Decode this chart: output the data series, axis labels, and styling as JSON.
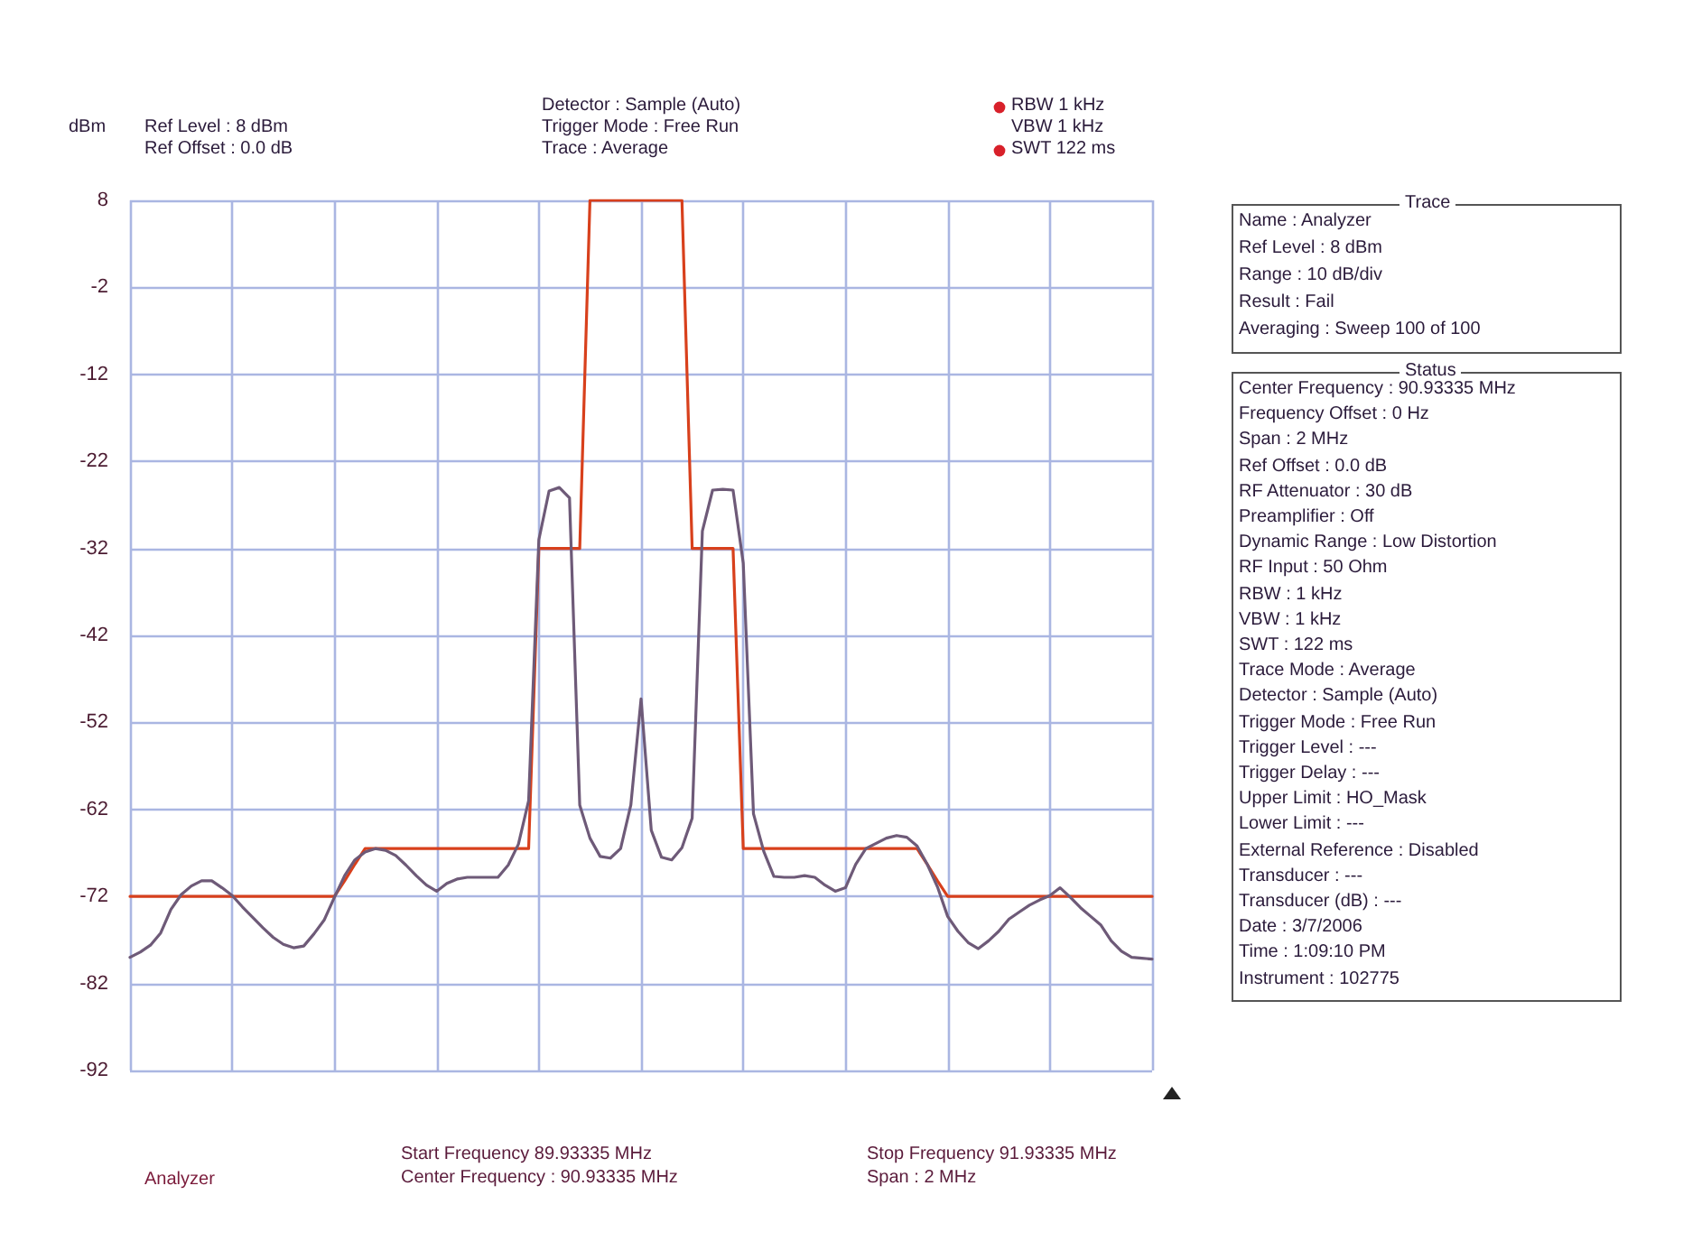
{
  "chart_data": {
    "type": "line",
    "ylabel": "dBm",
    "categories": [
      null,
      null,
      null,
      null,
      null,
      null,
      null,
      null,
      null,
      null,
      null,
      null,
      null,
      null,
      null,
      null,
      null,
      null,
      null,
      null,
      null,
      null,
      null,
      null,
      null,
      null,
      null,
      null,
      null,
      null,
      null,
      null,
      null,
      null,
      null,
      null,
      null,
      null,
      null,
      null,
      null,
      null,
      null,
      null,
      null,
      null,
      null,
      null,
      null,
      null,
      null,
      null,
      null,
      null,
      null,
      null,
      null,
      null,
      null,
      null,
      null,
      null,
      null,
      null,
      null,
      null,
      null,
      null,
      null,
      null,
      null,
      null,
      null,
      null,
      null,
      null,
      null,
      null,
      null,
      null,
      null,
      null,
      null,
      null,
      null,
      null,
      null,
      null,
      null,
      null,
      null,
      null,
      null,
      null,
      null,
      null,
      null,
      null,
      null,
      null,
      null
    ],
    "ylim": [
      -92,
      8
    ],
    "yticks": [
      8,
      -2,
      -12,
      -22,
      -32,
      -42,
      -52,
      -62,
      -72,
      -82,
      -92
    ],
    "tick_labels": "y",
    "grid": true,
    "line_style": "solid",
    "series": [
      {
        "color": "#d8401c",
        "values": [
          -72,
          -72,
          -72,
          -72,
          -72,
          -72,
          -72,
          -72,
          -72,
          -72,
          -72,
          -72,
          -72,
          -72,
          -72,
          -72,
          -72,
          -72,
          -72,
          -72,
          -72,
          -70.2,
          -68.3,
          -66.5,
          -66.5,
          -66.5,
          -66.5,
          -66.5,
          -66.5,
          -66.5,
          -66.5,
          -66.5,
          -66.5,
          -66.5,
          -66.5,
          -66.5,
          -66.5,
          -66.5,
          -66.5,
          -66.5,
          -32,
          -32,
          -32,
          -32,
          -32,
          8,
          8,
          8,
          8,
          8,
          8,
          8,
          8,
          8,
          8,
          -32,
          -32,
          -32,
          -32,
          -32,
          -66.5,
          -66.5,
          -66.5,
          -66.5,
          -66.5,
          -66.5,
          -66.5,
          -66.5,
          -66.5,
          -66.5,
          -66.5,
          -66.5,
          -66.5,
          -66.5,
          -66.5,
          -66.5,
          -66.5,
          -66.5,
          -68.3,
          -70.2,
          -72,
          -72,
          -72,
          -72,
          -72,
          -72,
          -72,
          -72,
          -72,
          -72,
          -72,
          -72,
          -72,
          -72,
          -72,
          -72,
          -72,
          -72,
          -72,
          -72,
          -72
        ]
      },
      {
        "color": "#6e5a78",
        "values": [
          -79,
          -78.4,
          -77.6,
          -76.2,
          -73.5,
          -71.8,
          -70.8,
          -70.2,
          -70.2,
          -71,
          -71.9,
          -73.2,
          -74.4,
          -75.6,
          -76.7,
          -77.5,
          -77.9,
          -77.7,
          -76.3,
          -74.7,
          -72.1,
          -69.6,
          -67.8,
          -66.9,
          -66.5,
          -66.7,
          -67.3,
          -68.4,
          -69.6,
          -70.7,
          -71.4,
          -70.5,
          -70,
          -69.8,
          -69.8,
          -69.8,
          -69.8,
          -68.4,
          -66,
          -61,
          -31,
          -25.4,
          -25,
          -26.2,
          -61.5,
          -65.3,
          -67.4,
          -67.6,
          -66.5,
          -61.5,
          -49.3,
          -64.4,
          -67.5,
          -67.8,
          -66.4,
          -63,
          -30,
          -25.3,
          -25.2,
          -25.3,
          -33.7,
          -62.5,
          -66.8,
          -69.7,
          -69.8,
          -69.8,
          -69.6,
          -69.8,
          -70.7,
          -71.4,
          -71,
          -68.3,
          -66.5,
          -65.9,
          -65.3,
          -65,
          -65.2,
          -66.2,
          -68.3,
          -70.9,
          -74.3,
          -76,
          -77.3,
          -78,
          -77.1,
          -76,
          -74.6,
          -73.8,
          -73,
          -72.4,
          -71.9,
          -71,
          -72.1,
          -73.3,
          -74.3,
          -75.3,
          -77.1,
          -78.3,
          -79,
          -79.1,
          -79.2
        ]
      }
    ],
    "annotations": [
      "Ref Level : 8 dBm",
      "Ref Offset : 0.0 dB",
      "Detector : Sample (Auto)",
      "Trigger Mode : Free Run",
      "Trace : Average",
      "RBW 1 kHz",
      "VBW 1 kHz",
      "SWT 122 ms",
      "Trace",
      "Name : Analyzer",
      "Ref Level : 8 dBm",
      "Range : 10 dB/div",
      "Result : Fail",
      "Averaging : Sweep 100 of 100",
      "Status",
      "Center Frequency : 90.93335 MHz",
      "Frequency Offset : 0 Hz",
      "Span : 2 MHz",
      "Ref Offset : 0.0 dB",
      "RF Attenuator : 30 dB",
      "Preamplifier : Off",
      "Dynamic Range : Low Distortion",
      "RF Input : 50 Ohm",
      "RBW : 1 kHz",
      "VBW : 1 kHz",
      "SWT : 122 ms",
      "Trace Mode : Average",
      "Detector : Sample (Auto)",
      "Trigger Mode : Free Run",
      "Trigger Level : ---",
      "Trigger Delay : ---",
      "Upper Limit : HO_Mask",
      "Lower Limit : ---",
      "External Reference : Disabled",
      "Transducer : ---",
      "Transducer (dB) : ---",
      "Date : 3/7/2006",
      "Time : 1:09:10 PM",
      "Instrument : 102775",
      "Analyzer",
      "Start Frequency 89.93335 MHz",
      "Center Frequency : 90.93335 MHz",
      "Stop Frequency 91.93335 MHz",
      "Span : 2 MHz"
    ]
  }
}
